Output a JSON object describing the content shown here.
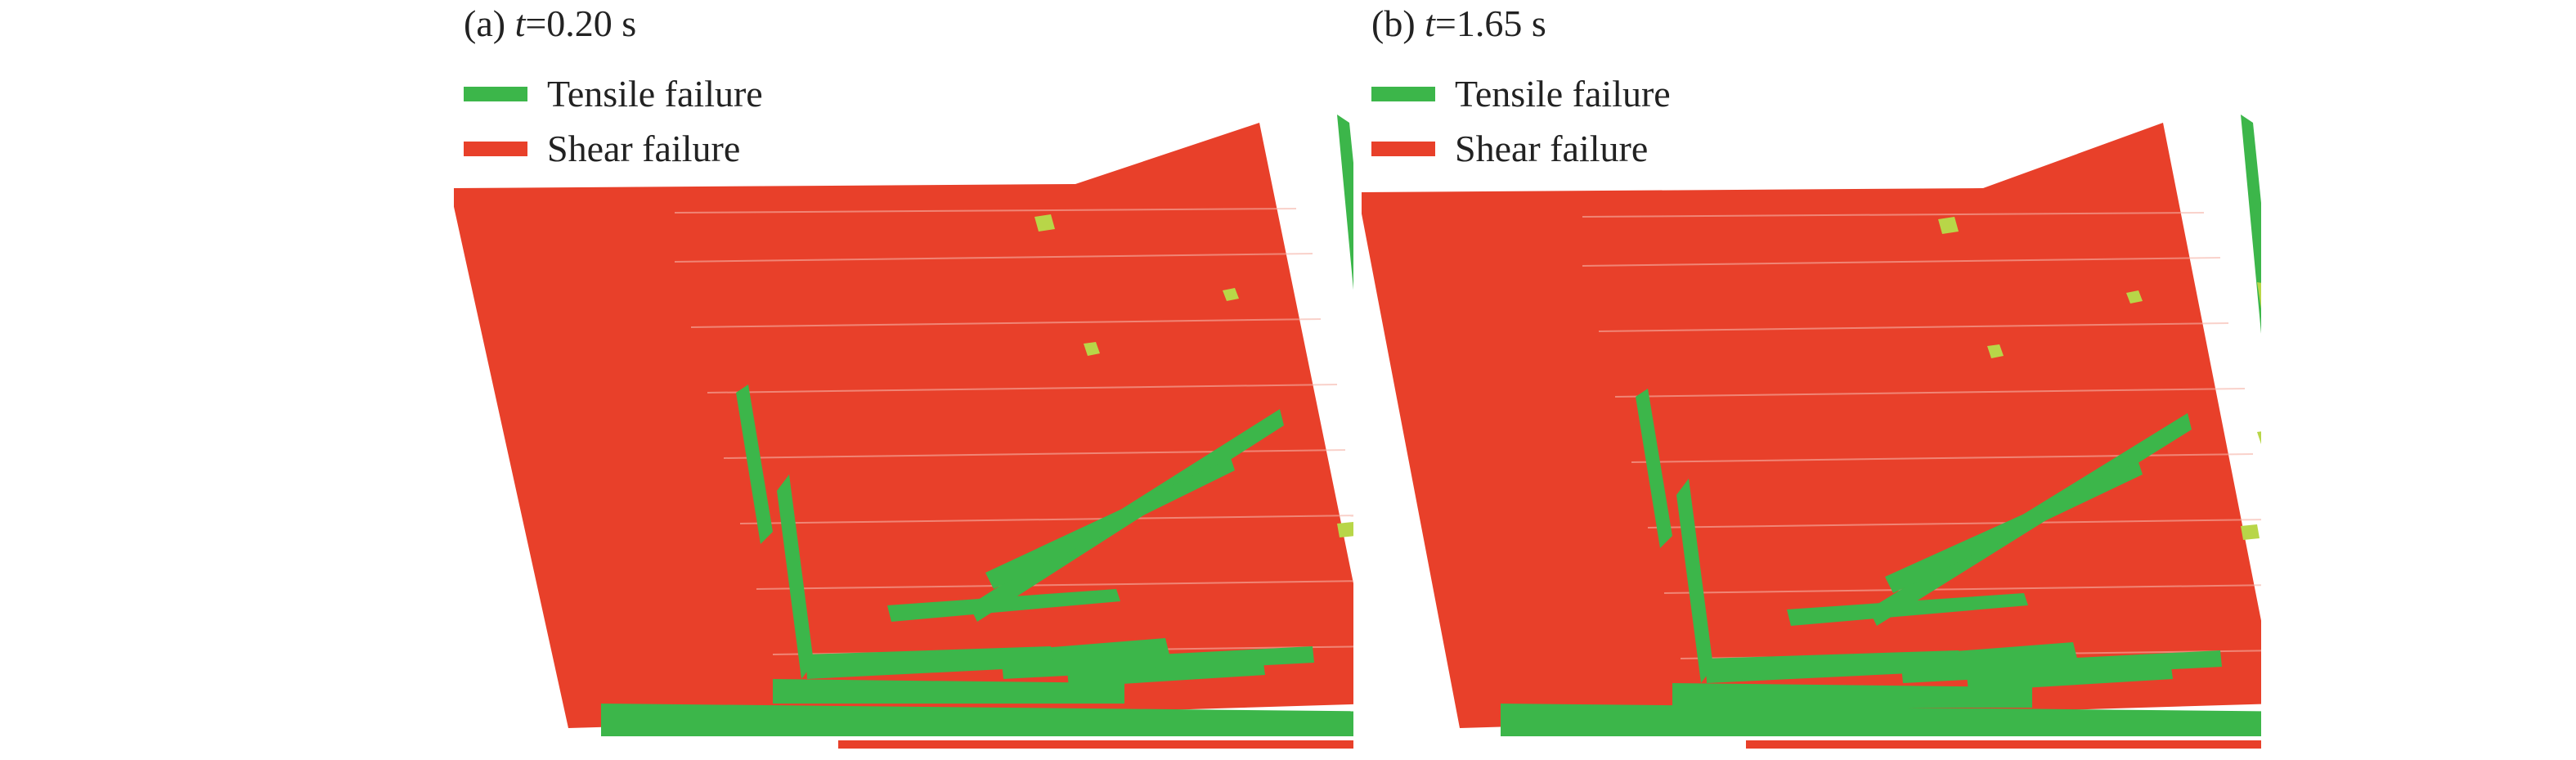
{
  "colors": {
    "tensile": "#3cb64a",
    "shear": "#e8402a",
    "shear_dark": "#d23222",
    "mixed": "#b8d648",
    "mesh_line": "#f6b4a8"
  },
  "legend": [
    {
      "label": "Tensile failure",
      "color": "#3cb64a"
    },
    {
      "label": "Shear failure",
      "color": "#e8402a"
    }
  ],
  "panels": [
    {
      "id": "a",
      "prefix": "(a) ",
      "var": "t",
      "value": "=0.20 s"
    },
    {
      "id": "b",
      "prefix": "(b) ",
      "var": "t",
      "value": "=1.65 s"
    }
  ]
}
